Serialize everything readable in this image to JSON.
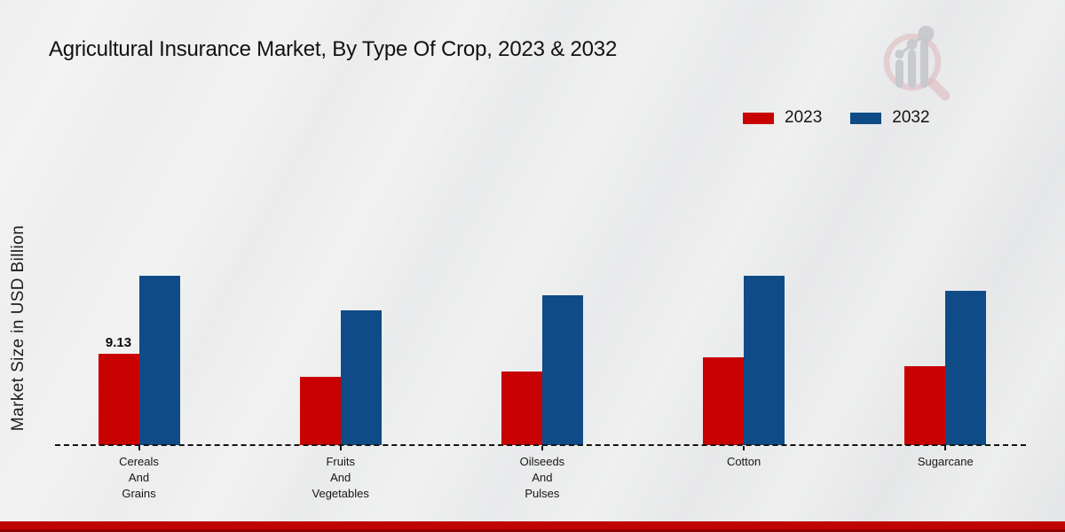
{
  "page": {
    "title": "Agricultural Insurance Market, By Type Of Crop, 2023 & 2032",
    "ylabel": "Market Size in USD Billion"
  },
  "colors": {
    "series_2023": "#c80101",
    "series_2032": "#0f4c87",
    "footer_bar": "#c00404",
    "baseline": "#141414",
    "background": "#e9eaeb"
  },
  "watermark_icon": "magnifier-bar-chart-logo",
  "chart_data": {
    "type": "bar",
    "title": "Agricultural Insurance Market, By Type Of Crop, 2023 & 2032",
    "ylabel": "Market Size in USD Billion",
    "xlabel": "",
    "categories": [
      "Cereals And Grains",
      "Fruits And Vegetables",
      "Oilseeds And Pulses",
      "Cotton",
      "Sugarcane"
    ],
    "category_lines": [
      [
        "Cereals",
        "And",
        "Grains"
      ],
      [
        "Fruits",
        "And",
        "Vegetables"
      ],
      [
        "Oilseeds",
        "And",
        "Pulses"
      ],
      [
        "Cotton"
      ],
      [
        "Sugarcane"
      ]
    ],
    "series": [
      {
        "name": "2023",
        "color": "#c80101",
        "values": [
          9.13,
          6.8,
          7.4,
          8.8,
          7.9
        ]
      },
      {
        "name": "2032",
        "color": "#0f4c87",
        "values": [
          16.9,
          13.5,
          15.0,
          16.9,
          15.4
        ]
      }
    ],
    "bar_labels": [
      {
        "series_index": 0,
        "category_index": 0,
        "text": "9.13"
      }
    ],
    "ylim": [
      0,
      20
    ],
    "grid": false,
    "baseline_style": "dashed",
    "legend_position": "top-right"
  }
}
